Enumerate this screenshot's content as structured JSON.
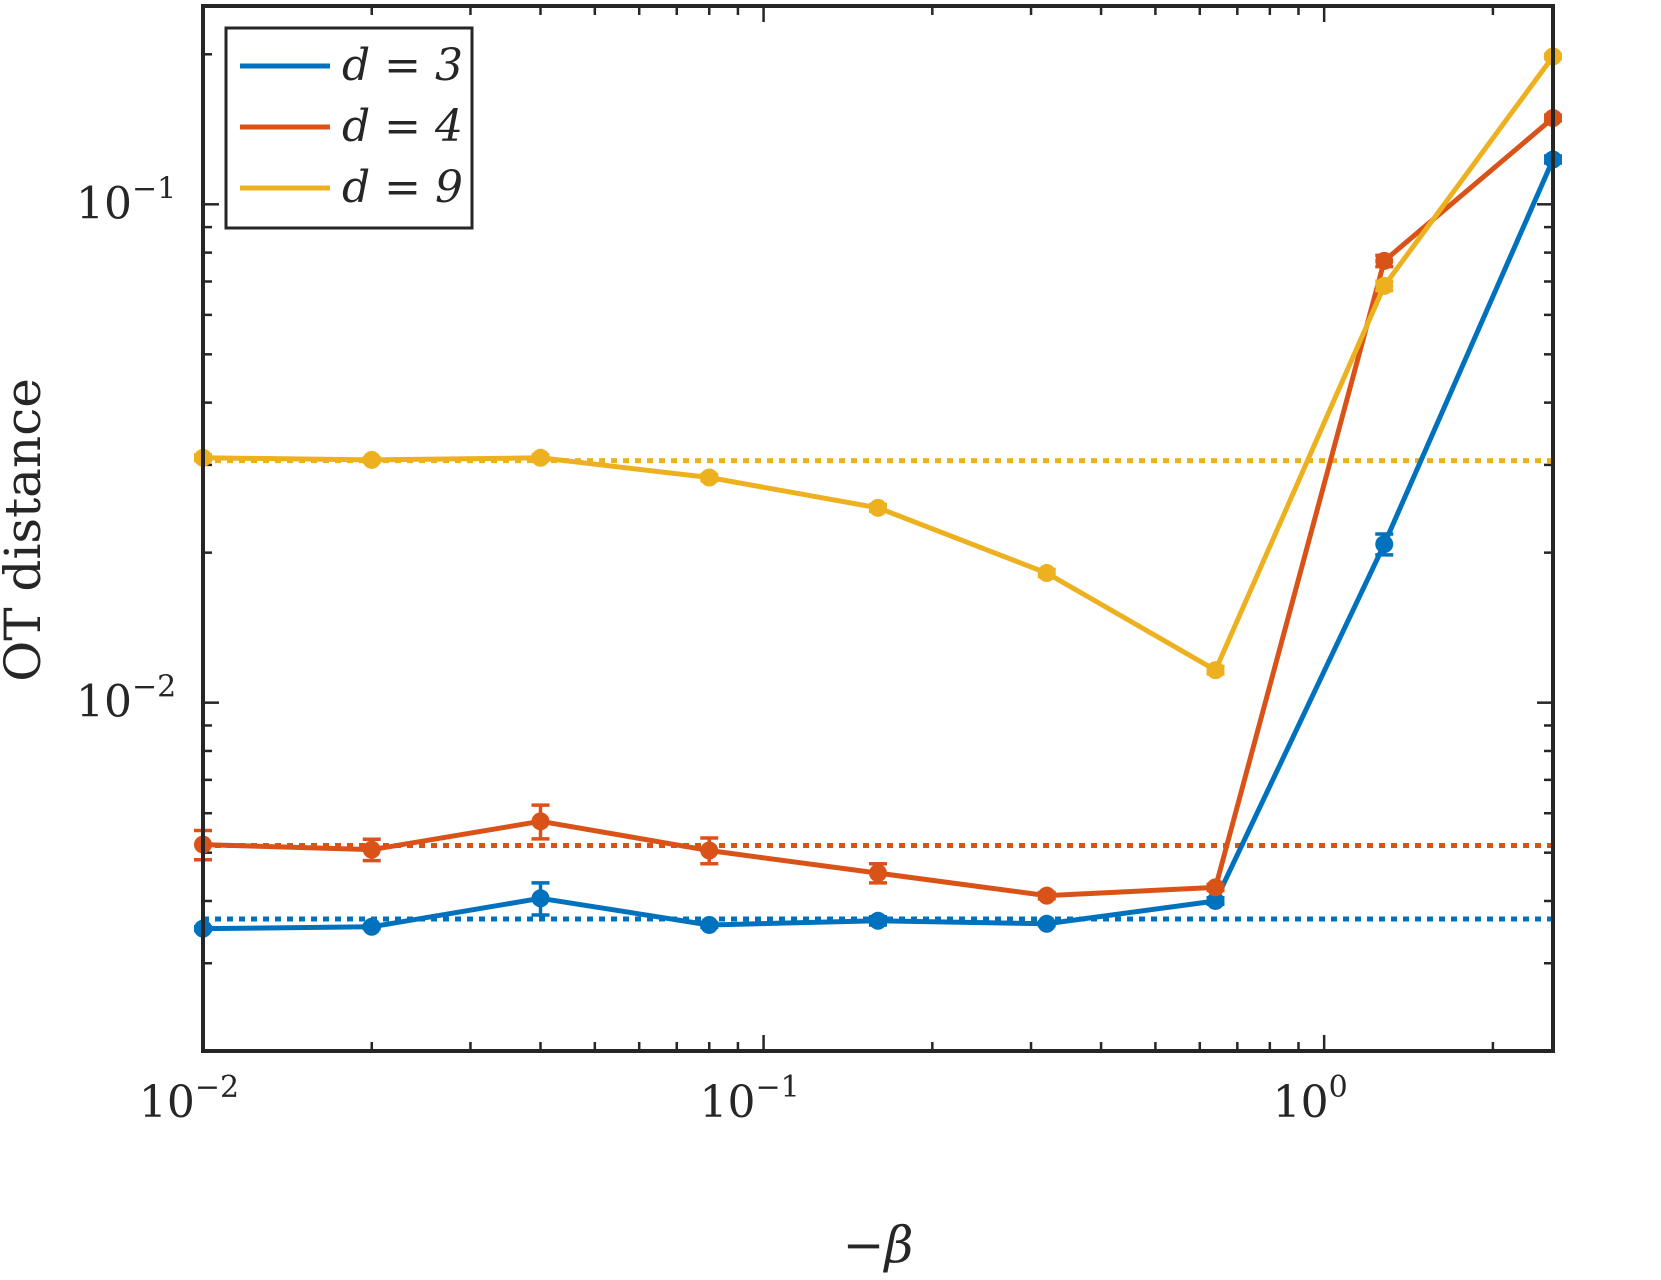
{
  "chart_data": {
    "type": "line",
    "xscale": "log",
    "yscale": "log",
    "xlabel": "−β",
    "ylabel": "OT distance",
    "xlim": [
      0.01,
      2.56
    ],
    "ylim": [
      0.002,
      0.25
    ],
    "grid": false,
    "legend_position": "top-left",
    "x_ticks": [
      {
        "base": "10",
        "exp": "−2"
      },
      {
        "base": "10",
        "exp": "−1"
      },
      {
        "base": "10",
        "exp": "0"
      }
    ],
    "y_ticks": [
      {
        "base": "10",
        "exp": "−2"
      },
      {
        "base": "10",
        "exp": "−1"
      }
    ],
    "x": [
      0.01,
      0.02,
      0.04,
      0.08,
      0.16,
      0.32,
      0.64,
      1.28,
      2.56
    ],
    "series": [
      {
        "name": "d = 3",
        "color": "#0072BD",
        "values": [
          0.00352,
          0.00355,
          0.00405,
          0.00358,
          0.00365,
          0.0036,
          0.004,
          0.0208,
          0.123
        ],
        "errors": [
          3e-05,
          3e-05,
          0.0003,
          4e-05,
          7e-05,
          3e-05,
          6e-05,
          0.001,
          0.002
        ],
        "reference": 0.00368
      },
      {
        "name": "d = 4",
        "color": "#D95319",
        "values": [
          0.00519,
          0.00507,
          0.00578,
          0.00505,
          0.00455,
          0.0041,
          0.00426,
          0.077,
          0.149
        ],
        "errors": [
          0.00035,
          0.00025,
          0.00045,
          0.0003,
          0.0002,
          6e-05,
          6e-05,
          0.002,
          0.002
        ],
        "reference": 0.00517
      },
      {
        "name": "d = 9",
        "color": "#EDB120",
        "values": [
          0.031,
          0.0307,
          0.031,
          0.0283,
          0.0246,
          0.0182,
          0.01162,
          0.0686,
          0.198
        ],
        "errors": [
          0.0004,
          0.0003,
          0.0004,
          0.0004,
          0.0004,
          0.0003,
          0.0002,
          0.0015,
          0.002
        ],
        "reference": 0.0306
      }
    ]
  }
}
